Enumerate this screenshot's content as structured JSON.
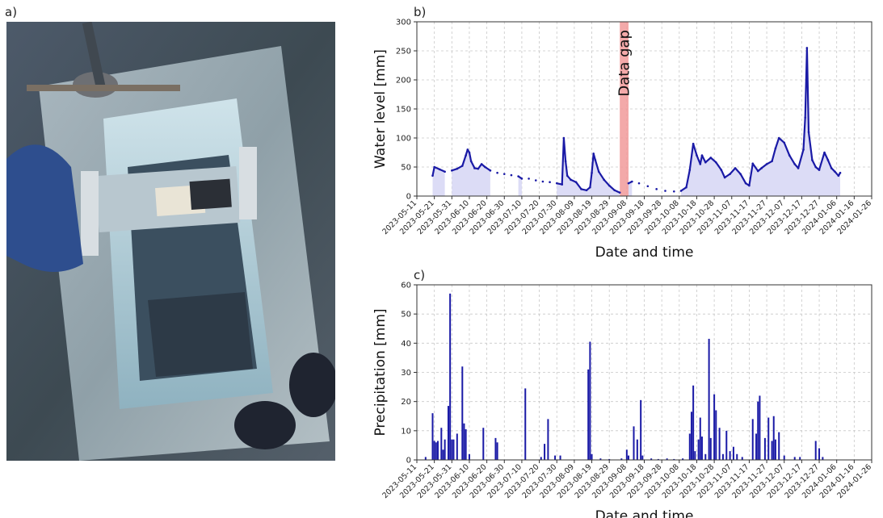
{
  "panels": {
    "a": "a)",
    "b": "b)",
    "c": "c)"
  },
  "chart_data": [
    {
      "type": "line",
      "panel": "b",
      "xlabel": "Date and time",
      "ylabel": "Water level [mm]",
      "ylim": [
        0,
        300
      ],
      "yticks": [
        0,
        50,
        100,
        150,
        200,
        250,
        300
      ],
      "xlim": [
        "2023-05-11",
        "2024-01-26"
      ],
      "xticks": [
        "2023-05-11",
        "2023-05-21",
        "2023-05-31",
        "2023-06-10",
        "2023-06-20",
        "2023-06-30",
        "2023-07-10",
        "2023-07-20",
        "2023-07-30",
        "2023-08-09",
        "2023-08-19",
        "2023-08-29",
        "2023-09-08",
        "2023-09-18",
        "2023-09-28",
        "2023-10-08",
        "2023-10-18",
        "2023-10-28",
        "2023-11-07",
        "2023-11-17",
        "2023-11-27",
        "2023-12-07",
        "2023-12-17",
        "2023-12-27",
        "2024-01-06",
        "2024-01-16",
        "2024-01-26"
      ],
      "grid": true,
      "annotation": {
        "label": "Data gap",
        "start": "2023-09-04",
        "end": "2023-09-09"
      },
      "series": [
        {
          "color": "#1a1aa6",
          "fill": "#dcdcf6",
          "points": [
            [
              "2023-05-20",
              35
            ],
            [
              "2023-05-21",
              50
            ],
            [
              "2023-05-24",
              46
            ],
            [
              "2023-05-27",
              42
            ],
            [
              "2023-05-31",
              44
            ],
            [
              "2023-06-03",
              47
            ],
            [
              "2023-06-06",
              52
            ],
            [
              "2023-06-08",
              70
            ],
            [
              "2023-06-09",
              80
            ],
            [
              "2023-06-10",
              75
            ],
            [
              "2023-06-11",
              60
            ],
            [
              "2023-06-13",
              48
            ],
            [
              "2023-06-15",
              47
            ],
            [
              "2023-06-17",
              55
            ],
            [
              "2023-06-19",
              50
            ],
            [
              "2023-06-22",
              44
            ],
            [
              "2023-06-26",
              40
            ],
            [
              "2023-06-30",
              38
            ],
            [
              "2023-07-04",
              36
            ],
            [
              "2023-07-08",
              34
            ],
            [
              "2023-07-10",
              30
            ],
            [
              "2023-07-14",
              30
            ],
            [
              "2023-07-18",
              27
            ],
            [
              "2023-07-22",
              25
            ],
            [
              "2023-07-26",
              24
            ],
            [
              "2023-07-30",
              22
            ],
            [
              "2023-08-02",
              20
            ],
            [
              "2023-08-03",
              100
            ],
            [
              "2023-08-04",
              60
            ],
            [
              "2023-08-05",
              35
            ],
            [
              "2023-08-07",
              28
            ],
            [
              "2023-08-10",
              24
            ],
            [
              "2023-08-13",
              12
            ],
            [
              "2023-08-16",
              10
            ],
            [
              "2023-08-18",
              15
            ],
            [
              "2023-08-19",
              40
            ],
            [
              "2023-08-20",
              73
            ],
            [
              "2023-08-21",
              62
            ],
            [
              "2023-08-23",
              42
            ],
            [
              "2023-08-26",
              28
            ],
            [
              "2023-08-29",
              18
            ],
            [
              "2023-09-01",
              10
            ],
            [
              "2023-09-04",
              6
            ],
            [
              "2023-09-09",
              22
            ],
            [
              "2023-09-11",
              25
            ],
            [
              "2023-09-15",
              22
            ],
            [
              "2023-09-20",
              17
            ],
            [
              "2023-09-25",
              12
            ],
            [
              "2023-09-30",
              9
            ],
            [
              "2023-10-05",
              8
            ],
            [
              "2023-10-09",
              9
            ],
            [
              "2023-10-12",
              15
            ],
            [
              "2023-10-14",
              45
            ],
            [
              "2023-10-16",
              90
            ],
            [
              "2023-10-18",
              70
            ],
            [
              "2023-10-20",
              55
            ],
            [
              "2023-10-21",
              70
            ],
            [
              "2023-10-23",
              58
            ],
            [
              "2023-10-26",
              66
            ],
            [
              "2023-10-29",
              58
            ],
            [
              "2023-11-01",
              45
            ],
            [
              "2023-11-03",
              32
            ],
            [
              "2023-11-06",
              38
            ],
            [
              "2023-11-09",
              48
            ],
            [
              "2023-11-12",
              38
            ],
            [
              "2023-11-15",
              22
            ],
            [
              "2023-11-17",
              18
            ],
            [
              "2023-11-19",
              56
            ],
            [
              "2023-11-22",
              43
            ],
            [
              "2023-11-24",
              48
            ],
            [
              "2023-11-27",
              55
            ],
            [
              "2023-11-30",
              60
            ],
            [
              "2023-12-02",
              82
            ],
            [
              "2023-12-04",
              100
            ],
            [
              "2023-12-07",
              92
            ],
            [
              "2023-12-10",
              70
            ],
            [
              "2023-12-13",
              55
            ],
            [
              "2023-12-15",
              48
            ],
            [
              "2023-12-18",
              80
            ],
            [
              "2023-12-19",
              135
            ],
            [
              "2023-12-20",
              255
            ],
            [
              "2023-12-21",
              110
            ],
            [
              "2023-12-23",
              62
            ],
            [
              "2023-12-25",
              50
            ],
            [
              "2023-12-27",
              45
            ],
            [
              "2023-12-30",
              75
            ],
            [
              "2024-01-01",
              62
            ],
            [
              "2024-01-03",
              48
            ],
            [
              "2024-01-05",
              42
            ],
            [
              "2024-01-07",
              35
            ],
            [
              "2024-01-08",
              40
            ]
          ]
        }
      ]
    },
    {
      "type": "bar",
      "panel": "c",
      "xlabel": "Date and time",
      "ylabel": "Precipitation [mm]",
      "ylim": [
        0,
        60
      ],
      "yticks": [
        0,
        10,
        20,
        30,
        40,
        50,
        60
      ],
      "xlim": [
        "2023-05-11",
        "2024-01-26"
      ],
      "xticks": [
        "2023-05-11",
        "2023-05-21",
        "2023-05-31",
        "2023-06-10",
        "2023-06-20",
        "2023-06-30",
        "2023-07-10",
        "2023-07-20",
        "2023-07-30",
        "2023-08-09",
        "2023-08-19",
        "2023-08-29",
        "2023-09-08",
        "2023-09-18",
        "2023-09-28",
        "2023-10-08",
        "2023-10-18",
        "2023-10-28",
        "2023-11-07",
        "2023-11-17",
        "2023-11-27",
        "2023-12-07",
        "2023-12-17",
        "2023-12-27",
        "2024-01-06",
        "2024-01-16",
        "2024-01-26"
      ],
      "grid": true,
      "color": "#1a1aa6",
      "bars": [
        [
          "2023-05-16",
          1
        ],
        [
          "2023-05-20",
          16
        ],
        [
          "2023-05-21",
          6.5
        ],
        [
          "2023-05-22",
          6
        ],
        [
          "2023-05-23",
          6.5
        ],
        [
          "2023-05-25",
          11
        ],
        [
          "2023-05-26",
          3.5
        ],
        [
          "2023-05-27",
          7
        ],
        [
          "2023-05-29",
          18.5
        ],
        [
          "2023-05-30",
          57
        ],
        [
          "2023-05-31",
          7
        ],
        [
          "2023-06-01",
          7
        ],
        [
          "2023-06-03",
          9
        ],
        [
          "2023-06-06",
          32
        ],
        [
          "2023-06-07",
          12.5
        ],
        [
          "2023-06-08",
          10.5
        ],
        [
          "2023-06-10",
          2
        ],
        [
          "2023-06-18",
          11
        ],
        [
          "2023-06-25",
          7.5
        ],
        [
          "2023-06-26",
          6
        ],
        [
          "2023-07-12",
          24.5
        ],
        [
          "2023-07-21",
          1
        ],
        [
          "2023-07-23",
          5.5
        ],
        [
          "2023-07-25",
          14
        ],
        [
          "2023-07-29",
          1.5
        ],
        [
          "2023-08-01",
          1.5
        ],
        [
          "2023-08-17",
          31
        ],
        [
          "2023-08-18",
          40.5
        ],
        [
          "2023-08-19",
          2
        ],
        [
          "2023-08-24",
          0.5
        ],
        [
          "2023-08-29",
          0.3
        ],
        [
          "2023-09-05",
          0.5
        ],
        [
          "2023-09-08",
          3.5
        ],
        [
          "2023-09-09",
          1.5
        ],
        [
          "2023-09-12",
          11.5
        ],
        [
          "2023-09-14",
          7
        ],
        [
          "2023-09-16",
          20.5
        ],
        [
          "2023-09-17",
          1.5
        ],
        [
          "2023-09-22",
          0.5
        ],
        [
          "2023-09-26",
          0.3
        ],
        [
          "2023-10-01",
          0.5
        ],
        [
          "2023-10-05",
          0.3
        ],
        [
          "2023-10-10",
          0.5
        ],
        [
          "2023-10-14",
          9
        ],
        [
          "2023-10-15",
          16.5
        ],
        [
          "2023-10-16",
          25.5
        ],
        [
          "2023-10-17",
          3
        ],
        [
          "2023-10-19",
          7
        ],
        [
          "2023-10-20",
          14.5
        ],
        [
          "2023-10-21",
          8
        ],
        [
          "2023-10-23",
          2
        ],
        [
          "2023-10-25",
          41.5
        ],
        [
          "2023-10-26",
          7.5
        ],
        [
          "2023-10-28",
          22.5
        ],
        [
          "2023-10-29",
          17
        ],
        [
          "2023-10-31",
          11
        ],
        [
          "2023-11-02",
          2
        ],
        [
          "2023-11-04",
          10
        ],
        [
          "2023-11-06",
          3
        ],
        [
          "2023-11-08",
          4.5
        ],
        [
          "2023-11-10",
          2
        ],
        [
          "2023-11-13",
          1
        ],
        [
          "2023-11-19",
          14
        ],
        [
          "2023-11-21",
          9
        ],
        [
          "2023-11-22",
          20
        ],
        [
          "2023-11-23",
          22
        ],
        [
          "2023-11-26",
          7.5
        ],
        [
          "2023-11-28",
          14.5
        ],
        [
          "2023-11-30",
          6.5
        ],
        [
          "2023-12-01",
          15
        ],
        [
          "2023-12-02",
          7
        ],
        [
          "2023-12-04",
          9.5
        ],
        [
          "2023-12-07",
          1.5
        ],
        [
          "2023-12-13",
          1
        ],
        [
          "2023-12-16",
          1
        ],
        [
          "2023-12-25",
          6.5
        ],
        [
          "2023-12-27",
          4
        ],
        [
          "2023-12-29",
          1
        ]
      ]
    }
  ]
}
